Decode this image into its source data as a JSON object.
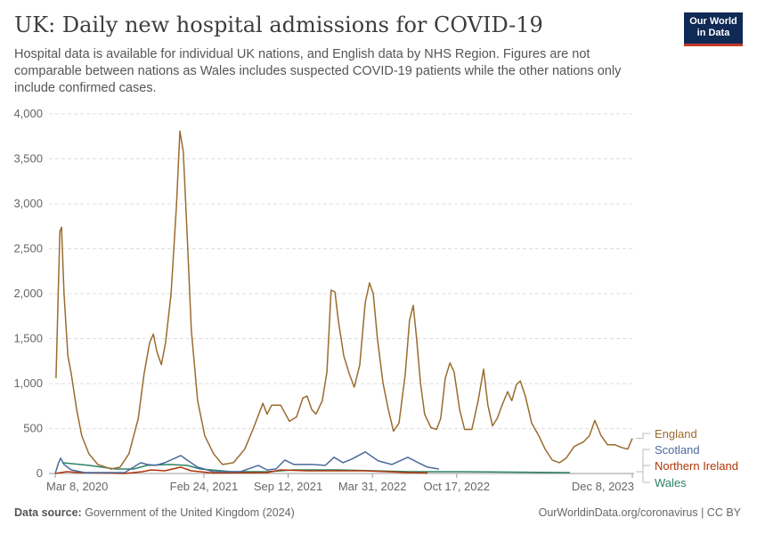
{
  "header": {
    "title": "UK: Daily new hospital admissions for COVID-19",
    "subtitle": "Hospital data is available for individual UK nations, and English data by NHS Region. Figures are not comparable between nations as Wales includes suspected COVID-19 patients while the other nations only include confirmed cases.",
    "logo": "Our World in Data"
  },
  "footer": {
    "source_label": "Data source:",
    "source": "Government of the United Kingdom (2024)",
    "credit": "OurWorldinData.org/coronavirus | CC BY"
  },
  "chart_data": {
    "type": "line",
    "xlim": [
      "2020-03-08",
      "2023-12-08"
    ],
    "ylim": [
      0,
      4000
    ],
    "grid": "horizontal dashed",
    "legend": "right (line-end labels)",
    "y_ticks": [
      {
        "v": 0,
        "label": "0"
      },
      {
        "v": 500,
        "label": "500"
      },
      {
        "v": 1000,
        "label": "1,000"
      },
      {
        "v": 1500,
        "label": "1,500"
      },
      {
        "v": 2000,
        "label": "2,000"
      },
      {
        "v": 2500,
        "label": "2,500"
      },
      {
        "v": 3000,
        "label": "3,000"
      },
      {
        "v": 3500,
        "label": "3,500"
      },
      {
        "v": 4000,
        "label": "4,000"
      }
    ],
    "x_ticks": [
      {
        "d": "2020-03-08",
        "label": "Mar 8, 2020"
      },
      {
        "d": "2021-02-24",
        "label": "Feb 24, 2021"
      },
      {
        "d": "2021-09-12",
        "label": "Sep 12, 2021"
      },
      {
        "d": "2022-03-31",
        "label": "Mar 31, 2022"
      },
      {
        "d": "2022-10-17",
        "label": "Oct 17, 2022"
      },
      {
        "d": "2023-12-08",
        "label": "Dec 8, 2023"
      }
    ],
    "series": [
      {
        "name": "England",
        "color": "#9a6c2f",
        "points": [
          [
            "2020-03-10",
            1060
          ],
          [
            "2020-03-19",
            2690
          ],
          [
            "2020-03-23",
            2740
          ],
          [
            "2020-03-29",
            2000
          ],
          [
            "2020-04-07",
            1310
          ],
          [
            "2020-04-15",
            1110
          ],
          [
            "2020-04-28",
            710
          ],
          [
            "2020-05-10",
            420
          ],
          [
            "2020-05-27",
            220
          ],
          [
            "2020-06-17",
            100
          ],
          [
            "2020-07-19",
            50
          ],
          [
            "2020-08-09",
            70
          ],
          [
            "2020-08-30",
            220
          ],
          [
            "2020-09-21",
            610
          ],
          [
            "2020-10-05",
            1110
          ],
          [
            "2020-10-18",
            1455
          ],
          [
            "2020-10-27",
            1550
          ],
          [
            "2020-11-04",
            1360
          ],
          [
            "2020-11-15",
            1210
          ],
          [
            "2020-11-25",
            1455
          ],
          [
            "2020-12-08",
            2000
          ],
          [
            "2020-12-21",
            2990
          ],
          [
            "2020-12-29",
            3810
          ],
          [
            "2021-01-06",
            3580
          ],
          [
            "2021-01-15",
            2690
          ],
          [
            "2021-01-25",
            1600
          ],
          [
            "2021-02-09",
            810
          ],
          [
            "2021-02-26",
            420
          ],
          [
            "2021-03-19",
            220
          ],
          [
            "2021-04-09",
            100
          ],
          [
            "2021-05-05",
            120
          ],
          [
            "2021-06-01",
            270
          ],
          [
            "2021-06-22",
            510
          ],
          [
            "2021-07-14",
            780
          ],
          [
            "2021-07-24",
            660
          ],
          [
            "2021-08-04",
            760
          ],
          [
            "2021-08-25",
            760
          ],
          [
            "2021-09-15",
            580
          ],
          [
            "2021-10-02",
            630
          ],
          [
            "2021-10-17",
            840
          ],
          [
            "2021-10-27",
            860
          ],
          [
            "2021-11-07",
            710
          ],
          [
            "2021-11-17",
            660
          ],
          [
            "2021-12-02",
            810
          ],
          [
            "2021-12-13",
            1130
          ],
          [
            "2021-12-23",
            2040
          ],
          [
            "2022-01-01",
            2020
          ],
          [
            "2022-01-09",
            1700
          ],
          [
            "2022-01-22",
            1310
          ],
          [
            "2022-02-04",
            1110
          ],
          [
            "2022-02-16",
            960
          ],
          [
            "2022-03-01",
            1210
          ],
          [
            "2022-03-14",
            1900
          ],
          [
            "2022-03-24",
            2120
          ],
          [
            "2022-04-02",
            2000
          ],
          [
            "2022-04-12",
            1500
          ],
          [
            "2022-04-25",
            1010
          ],
          [
            "2022-05-08",
            710
          ],
          [
            "2022-05-20",
            470
          ],
          [
            "2022-06-02",
            560
          ],
          [
            "2022-06-17",
            1110
          ],
          [
            "2022-06-27",
            1700
          ],
          [
            "2022-07-06",
            1870
          ],
          [
            "2022-07-14",
            1500
          ],
          [
            "2022-07-23",
            1010
          ],
          [
            "2022-08-02",
            660
          ],
          [
            "2022-08-17",
            510
          ],
          [
            "2022-08-30",
            490
          ],
          [
            "2022-09-09",
            610
          ],
          [
            "2022-09-20",
            1060
          ],
          [
            "2022-10-01",
            1230
          ],
          [
            "2022-10-11",
            1130
          ],
          [
            "2022-10-24",
            710
          ],
          [
            "2022-11-05",
            490
          ],
          [
            "2022-11-22",
            490
          ],
          [
            "2022-12-07",
            810
          ],
          [
            "2022-12-20",
            1160
          ],
          [
            "2022-12-30",
            760
          ],
          [
            "2023-01-10",
            530
          ],
          [
            "2023-01-21",
            610
          ],
          [
            "2023-02-02",
            760
          ],
          [
            "2023-02-15",
            910
          ],
          [
            "2023-02-25",
            810
          ],
          [
            "2023-03-08",
            990
          ],
          [
            "2023-03-17",
            1030
          ],
          [
            "2023-03-29",
            860
          ],
          [
            "2023-04-13",
            560
          ],
          [
            "2023-04-30",
            420
          ],
          [
            "2023-05-15",
            270
          ],
          [
            "2023-06-01",
            150
          ],
          [
            "2023-06-18",
            120
          ],
          [
            "2023-07-04",
            170
          ],
          [
            "2023-07-23",
            300
          ],
          [
            "2023-08-14",
            350
          ],
          [
            "2023-08-28",
            420
          ],
          [
            "2023-09-10",
            590
          ],
          [
            "2023-09-25",
            420
          ],
          [
            "2023-10-10",
            320
          ],
          [
            "2023-10-27",
            320
          ],
          [
            "2023-11-12",
            290
          ],
          [
            "2023-11-27",
            270
          ],
          [
            "2023-12-08",
            390
          ]
        ]
      },
      {
        "name": "Scotland",
        "color": "#4c6a9c",
        "points": [
          [
            "2020-03-08",
            0
          ],
          [
            "2020-03-16",
            120
          ],
          [
            "2020-03-21",
            170
          ],
          [
            "2020-03-29",
            100
          ],
          [
            "2020-04-15",
            40
          ],
          [
            "2020-05-17",
            10
          ],
          [
            "2020-08-20",
            10
          ],
          [
            "2020-09-10",
            70
          ],
          [
            "2020-09-27",
            120
          ],
          [
            "2020-10-12",
            100
          ],
          [
            "2020-11-02",
            90
          ],
          [
            "2020-11-23",
            120
          ],
          [
            "2020-12-31",
            200
          ],
          [
            "2021-01-15",
            150
          ],
          [
            "2021-02-09",
            70
          ],
          [
            "2021-03-19",
            20
          ],
          [
            "2021-05-22",
            20
          ],
          [
            "2021-07-03",
            90
          ],
          [
            "2021-07-24",
            40
          ],
          [
            "2021-08-14",
            50
          ],
          [
            "2021-09-04",
            150
          ],
          [
            "2021-09-26",
            100
          ],
          [
            "2021-11-07",
            100
          ],
          [
            "2021-12-09",
            90
          ],
          [
            "2021-12-30",
            180
          ],
          [
            "2022-01-20",
            120
          ],
          [
            "2022-02-10",
            160
          ],
          [
            "2022-03-14",
            240
          ],
          [
            "2022-04-14",
            140
          ],
          [
            "2022-05-16",
            100
          ],
          [
            "2022-06-23",
            180
          ],
          [
            "2022-07-18",
            120
          ],
          [
            "2022-08-09",
            70
          ],
          [
            "2022-09-05",
            50
          ]
        ]
      },
      {
        "name": "Northern Ireland",
        "color": "#b13507",
        "points": [
          [
            "2020-03-08",
            0
          ],
          [
            "2020-04-04",
            20
          ],
          [
            "2020-05-06",
            10
          ],
          [
            "2020-08-20",
            0
          ],
          [
            "2020-10-01",
            20
          ],
          [
            "2020-10-22",
            40
          ],
          [
            "2020-11-23",
            30
          ],
          [
            "2020-12-31",
            70
          ],
          [
            "2021-01-25",
            30
          ],
          [
            "2021-03-19",
            5
          ],
          [
            "2021-07-24",
            10
          ],
          [
            "2021-08-25",
            40
          ],
          [
            "2021-10-27",
            30
          ],
          [
            "2022-01-09",
            30
          ],
          [
            "2022-03-14",
            30
          ],
          [
            "2022-06-27",
            10
          ],
          [
            "2022-08-09",
            5
          ]
        ]
      },
      {
        "name": "Wales",
        "color": "#2c8465",
        "points": [
          [
            "2020-03-25",
            120
          ],
          [
            "2020-05-27",
            90
          ],
          [
            "2020-07-30",
            50
          ],
          [
            "2020-09-10",
            50
          ],
          [
            "2020-10-12",
            90
          ],
          [
            "2020-12-04",
            100
          ],
          [
            "2021-01-15",
            90
          ],
          [
            "2021-02-16",
            50
          ],
          [
            "2021-05-01",
            20
          ],
          [
            "2021-07-24",
            20
          ],
          [
            "2021-09-26",
            40
          ],
          [
            "2022-01-09",
            40
          ],
          [
            "2022-04-04",
            30
          ],
          [
            "2022-06-27",
            20
          ],
          [
            "2022-11-01",
            20
          ],
          [
            "2023-07-13",
            10
          ]
        ]
      }
    ]
  }
}
